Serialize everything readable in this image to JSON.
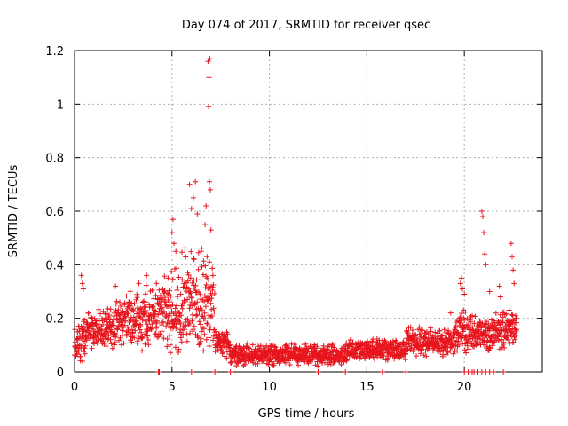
{
  "chart_data": {
    "type": "scatter",
    "title": "Day 074 of 2017, SRMTID for receiver qsec",
    "xlabel": "GPS time / hours",
    "ylabel": "SRMTID / TECUs",
    "xlim": [
      0,
      24
    ],
    "ylim": [
      0,
      1.2
    ],
    "x_ticks": [
      0,
      5,
      10,
      15,
      20
    ],
    "x_tick_labels": [
      "0",
      "5",
      "10",
      "15",
      "20"
    ],
    "y_ticks": [
      0,
      0.2,
      0.4,
      0.6,
      0.8,
      1,
      1.2
    ],
    "y_tick_labels": [
      "0",
      "0.2",
      "0.4",
      "0.6",
      "0.8",
      "1",
      "1.2"
    ],
    "grid": true,
    "marker": "+",
    "marker_color": "#e8141d",
    "series": [
      {
        "name": "SRMTID",
        "segments": [
          {
            "x_start": 0.0,
            "x_end": 0.6,
            "base": 0.1,
            "spread": 0.06
          },
          {
            "x_start": 0.6,
            "x_end": 2.0,
            "base": 0.15,
            "spread": 0.06
          },
          {
            "x_start": 2.0,
            "x_end": 3.5,
            "base": 0.18,
            "spread": 0.08
          },
          {
            "x_start": 3.5,
            "x_end": 4.5,
            "base": 0.2,
            "spread": 0.09
          },
          {
            "x_start": 4.5,
            "x_end": 5.5,
            "base": 0.22,
            "spread": 0.12
          },
          {
            "x_start": 5.5,
            "x_end": 7.2,
            "base": 0.24,
            "spread": 0.15
          },
          {
            "x_start": 7.2,
            "x_end": 8.0,
            "base": 0.1,
            "spread": 0.04
          },
          {
            "x_start": 8.0,
            "x_end": 11.0,
            "base": 0.06,
            "spread": 0.03
          },
          {
            "x_start": 11.0,
            "x_end": 14.0,
            "base": 0.06,
            "spread": 0.03
          },
          {
            "x_start": 14.0,
            "x_end": 17.0,
            "base": 0.08,
            "spread": 0.03
          },
          {
            "x_start": 17.0,
            "x_end": 19.5,
            "base": 0.11,
            "spread": 0.04
          },
          {
            "x_start": 19.5,
            "x_end": 20.3,
            "base": 0.14,
            "spread": 0.06
          },
          {
            "x_start": 20.3,
            "x_end": 21.5,
            "base": 0.14,
            "spread": 0.05
          },
          {
            "x_start": 21.5,
            "x_end": 22.7,
            "base": 0.15,
            "spread": 0.05
          }
        ],
        "spikes": [
          {
            "x": 0.35,
            "y": 0.36
          },
          {
            "x": 0.4,
            "y": 0.33
          },
          {
            "x": 0.45,
            "y": 0.31
          },
          {
            "x": 2.1,
            "y": 0.32
          },
          {
            "x": 3.3,
            "y": 0.33
          },
          {
            "x": 3.7,
            "y": 0.36
          },
          {
            "x": 4.2,
            "y": 0.33
          },
          {
            "x": 4.8,
            "y": 0.35
          },
          {
            "x": 5.0,
            "y": 0.52
          },
          {
            "x": 5.05,
            "y": 0.57
          },
          {
            "x": 5.1,
            "y": 0.48
          },
          {
            "x": 5.2,
            "y": 0.45
          },
          {
            "x": 5.9,
            "y": 0.7
          },
          {
            "x": 6.0,
            "y": 0.61
          },
          {
            "x": 6.1,
            "y": 0.65
          },
          {
            "x": 6.2,
            "y": 0.71
          },
          {
            "x": 6.3,
            "y": 0.59
          },
          {
            "x": 6.5,
            "y": 0.45
          },
          {
            "x": 6.7,
            "y": 0.55
          },
          {
            "x": 6.75,
            "y": 0.62
          },
          {
            "x": 6.85,
            "y": 1.16
          },
          {
            "x": 6.9,
            "y": 1.1
          },
          {
            "x": 6.88,
            "y": 0.99
          },
          {
            "x": 6.95,
            "y": 1.17
          },
          {
            "x": 6.92,
            "y": 0.71
          },
          {
            "x": 6.97,
            "y": 0.68
          },
          {
            "x": 7.0,
            "y": 0.53
          },
          {
            "x": 6.8,
            "y": 0.43
          },
          {
            "x": 19.3,
            "y": 0.22
          },
          {
            "x": 19.8,
            "y": 0.33
          },
          {
            "x": 19.85,
            "y": 0.35
          },
          {
            "x": 19.9,
            "y": 0.31
          },
          {
            "x": 20.0,
            "y": 0.29
          },
          {
            "x": 20.9,
            "y": 0.6
          },
          {
            "x": 20.95,
            "y": 0.58
          },
          {
            "x": 21.0,
            "y": 0.52
          },
          {
            "x": 21.05,
            "y": 0.44
          },
          {
            "x": 21.1,
            "y": 0.4
          },
          {
            "x": 21.3,
            "y": 0.3
          },
          {
            "x": 21.8,
            "y": 0.32
          },
          {
            "x": 21.85,
            "y": 0.28
          },
          {
            "x": 22.4,
            "y": 0.48
          },
          {
            "x": 22.45,
            "y": 0.43
          },
          {
            "x": 22.5,
            "y": 0.38
          },
          {
            "x": 22.55,
            "y": 0.33
          }
        ],
        "zero_points": [
          4.3,
          4.35,
          6.0,
          7.2,
          8.0,
          12.5,
          13.9,
          15.8,
          17.0,
          20.0,
          20.2,
          20.4,
          20.5,
          20.7,
          20.9,
          21.1,
          21.3,
          21.5,
          22.0
        ]
      }
    ]
  }
}
